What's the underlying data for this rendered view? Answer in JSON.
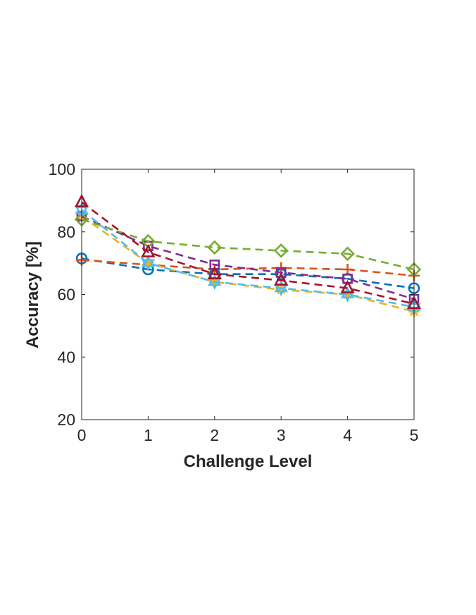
{
  "chart_data": {
    "type": "line",
    "title": "",
    "xlabel": "Challenge Level",
    "ylabel": "Accuracy [%]",
    "xlim": [
      0,
      5
    ],
    "ylim": [
      20,
      100
    ],
    "x": [
      0,
      1,
      2,
      3,
      4,
      5
    ],
    "xticks": [
      "0",
      "1",
      "2",
      "3",
      "4",
      "5"
    ],
    "yticks": [
      "20",
      "40",
      "60",
      "80",
      "100"
    ],
    "grid": false,
    "legend": "none",
    "series": [
      {
        "color": "#0072BD",
        "marker": "circle",
        "values": [
          71.5,
          68,
          66.5,
          66.5,
          65,
          62
        ]
      },
      {
        "color": "#D95319",
        "marker": "plus",
        "values": [
          71,
          69.5,
          68,
          68.5,
          68,
          66
        ]
      },
      {
        "color": "#EDB120",
        "marker": "asterisk",
        "values": [
          85,
          70,
          64,
          61.5,
          60,
          54.5
        ]
      },
      {
        "color": "#7E2F8E",
        "marker": "square",
        "values": [
          85,
          75.5,
          69.5,
          67,
          65,
          58.5
        ]
      },
      {
        "color": "#77AC30",
        "marker": "diamond",
        "values": [
          84,
          77,
          75,
          74,
          73,
          68
        ]
      },
      {
        "color": "#4DBEEE",
        "marker": "hexagram",
        "values": [
          87,
          70,
          64,
          62,
          60,
          56
        ]
      },
      {
        "color": "#A2142F",
        "marker": "triangle",
        "values": [
          89.5,
          73.5,
          66.5,
          64.5,
          62,
          57
        ]
      }
    ]
  }
}
